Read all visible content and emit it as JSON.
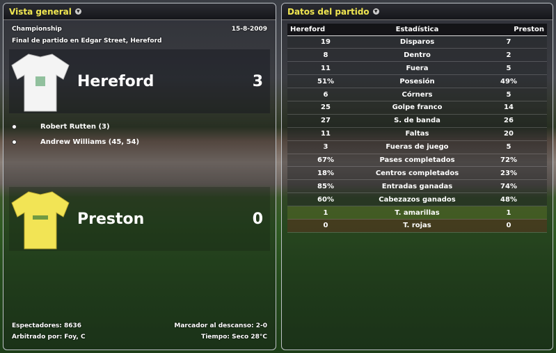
{
  "overview": {
    "title": "Vista general",
    "competition": "Championship",
    "date": "15-8-2009",
    "venue": "Final de partido en Edgar Street, Hereford",
    "home": {
      "name": "Hereford",
      "score": "3",
      "shirt_color": "#f4f4f4"
    },
    "away": {
      "name": "Preston",
      "score": "0",
      "shirt_color": "#f2e455"
    },
    "scorers": [
      "Robert Rutten (3)",
      "Andrew Williams (45, 54)"
    ],
    "attendance": "Espectadores: 8636",
    "referee": "Arbitrado por: Foy, C",
    "halftime": "Marcador al descanso: 2-0",
    "weather": "Tiempo: Seco 28°C"
  },
  "stats": {
    "title": "Datos del partido",
    "headers": [
      "Hereford",
      "Estadística",
      "Preston"
    ],
    "rows": [
      [
        "19",
        "Disparos",
        "7"
      ],
      [
        "8",
        "Dentro",
        "2"
      ],
      [
        "11",
        "Fuera",
        "5"
      ],
      [
        "51%",
        "Posesión",
        "49%"
      ],
      [
        "6",
        "Córners",
        "5"
      ],
      [
        "25",
        "Golpe franco",
        "14"
      ],
      [
        "27",
        "S. de banda",
        "26"
      ],
      [
        "11",
        "Faltas",
        "20"
      ],
      [
        "3",
        "Fueras de juego",
        "5"
      ],
      [
        "67%",
        "Pases completados",
        "72%"
      ],
      [
        "18%",
        "Centros completados",
        "23%"
      ],
      [
        "85%",
        "Entradas ganadas",
        "74%"
      ],
      [
        "60%",
        "Cabezazos ganados",
        "48%"
      ],
      [
        "1",
        "T. amarillas",
        "1"
      ],
      [
        "0",
        "T. rojas",
        "0"
      ]
    ]
  }
}
